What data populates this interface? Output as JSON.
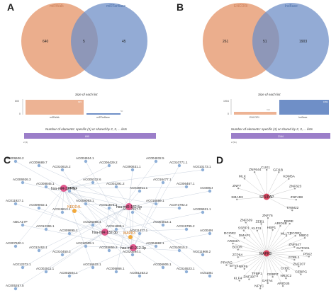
{
  "panel_a": {
    "letter": "A",
    "set_left": "miRWalk",
    "set_right": "miRTarBase",
    "count_left": "640",
    "count_overlap": "5",
    "count_right": "45",
    "bar_title": "Size of each list",
    "bar_axis_top": "600",
    "bar_axis_zero": "0",
    "bar_label_left": "miRWalk",
    "bar_label_right": "miRTarBase",
    "bar_value_left": "645",
    "bar_value_right": "50",
    "strip_title": "Number of elements: specific (1) or shared by 2, 3, ... lists",
    "strip_count": "690",
    "strip_tick": "2 (5)",
    "color_left": "#e8a079",
    "color_right": "#6f8fc7",
    "color_strip": "#9b7ec9"
  },
  "panel_b": {
    "letter": "B",
    "set_left": "ENCORI",
    "set_right": "lncBase",
    "count_left": "261",
    "count_overlap": "51",
    "count_right": "1903",
    "bar_title": "Size of each list",
    "bar_axis_top": "1904",
    "bar_axis_zero": "0",
    "bar_label_left": "ENCORI",
    "bar_label_right": "lncBase",
    "bar_value_left": "312",
    "bar_value_right": "1954",
    "strip_title": "Number of elements: specific (1) or shared by 2, 3, ... lists",
    "strip_count": "2164",
    "strip_tick": "2 (51)"
  },
  "panel_c": {
    "letter": "C",
    "hubs": [
      "hsa-miR-324-5p",
      "hsa-miR-182-5p",
      "hsa-miR-132-3p",
      "hsa-miR-212-3p"
    ],
    "mrnas": [
      "NEDD4L",
      "MAPK3"
    ],
    "lncrnas": [
      "AC009606.2",
      "AC009689.7",
      "AC010615.2",
      "AC004924.1",
      "AC006429.2",
      "AC090631.1",
      "AC004832.5",
      "AC010771.1",
      "AC010173.1",
      "AC006926.3",
      "AC008845.1",
      "AC011965.1",
      "AC005332.6",
      "AC002291.2",
      "AC015911.1",
      "AC016477.1",
      "AC006467.1",
      "AC009158.1",
      "AC011927.1",
      "AC009002.1",
      "AC015813.1",
      "AC009063.1",
      "AC011978.2",
      "AC027817.1",
      "AC016869.1",
      "AC073792.2",
      "AC006921.1",
      "ABCA17P",
      "AC012365.1",
      "AC009895.1",
      "AC026086.4",
      "AC011889.1",
      "AC011477.1",
      "AC004814.1",
      "AC015795.2",
      "AC004998.1",
      "AC007620.1",
      "AC012463.1",
      "AC010450.3",
      "AC012009.1",
      "AC025855.2",
      "AC020594.1",
      "AC004882.1",
      "AC010615.2",
      "AC011968.2",
      "AC012372.1",
      "AC002511.1",
      "AC002504.1",
      "AC016633.1",
      "AC005866.1",
      "AC001253.2",
      "AC006906.1",
      "AC016523.1",
      "AC010639.3",
      "AC005267.5"
    ]
  },
  "panel_d": {
    "letter": "D",
    "hubs": [
      "SP1/PAP",
      "MAPK3"
    ],
    "genes": [
      "SMAD3",
      "ZNF7",
      "MLX",
      "ZNF644",
      "CUX1",
      "GFI1B",
      "KDM5A",
      "ZNF623",
      "ZNF488",
      "TRIM22",
      "BOOR",
      "ARID3A",
      "RCOR2",
      "DMAP1",
      "SSRP1",
      "ZNF639",
      "KLF11",
      "ZEB1",
      "ZNF76",
      "HBP1",
      "ARID4B",
      "RBRE",
      "MLLT1",
      "RCOR1",
      "MBD2",
      "ZNF547",
      "GATAD1",
      "PBX2",
      "FOBL1",
      "ZNF207",
      "CEBPG",
      "CHD1",
      "NR2C2",
      "ARID1B",
      "CEBPZ",
      "GATA4",
      "NFYC",
      "TFBP1",
      "ZNF197",
      "KLF4",
      "NRF6",
      "ETV4",
      "PPARG",
      "ZFP64"
    ]
  }
}
